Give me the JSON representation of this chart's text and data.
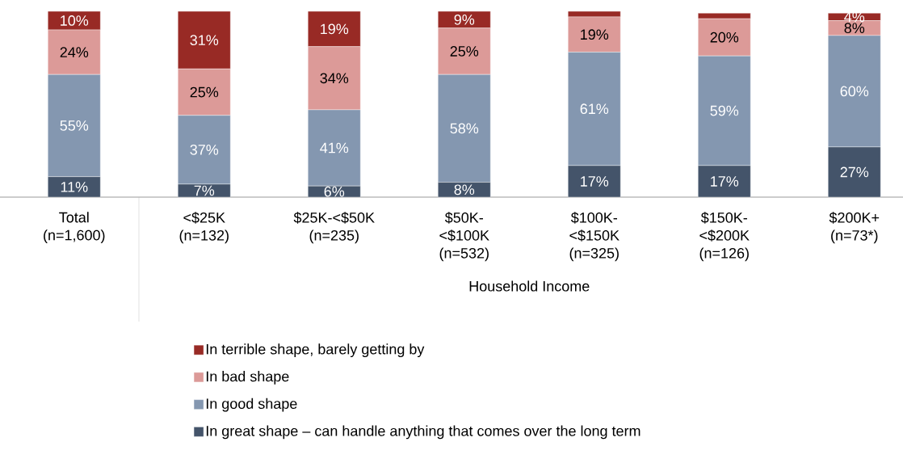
{
  "chart_data": {
    "type": "bar",
    "stacked": true,
    "legend": "bottom",
    "categories": [
      "Total (n=1,600)",
      "<$25K (n=132)",
      "$25K-<$50K (n=235)",
      "$50K-<$100K (n=532)",
      "$100K-<$150K (n=325)",
      "$150K-<$200K (n=126)",
      "$200K+ (n=73*)"
    ],
    "annotations": [
      "Household Income"
    ],
    "series": [
      {
        "name": "In great shape – can handle anything that comes over the long term",
        "color": "#44546a",
        "values": [
          11,
          7,
          6,
          8,
          17,
          17,
          27
        ],
        "value_labels": [
          "11%",
          "7%",
          "6%",
          "8%",
          "17%",
          "17%",
          "27%"
        ]
      },
      {
        "name": "In good shape",
        "color": "#8497b0",
        "values": [
          55,
          37,
          41,
          58,
          61,
          59,
          60
        ],
        "value_labels": [
          "55%",
          "37%",
          "41%",
          "58%",
          "61%",
          "59%",
          "60%"
        ]
      },
      {
        "name": "In bad shape",
        "color": "#dc9a98",
        "values": [
          24,
          25,
          34,
          25,
          19,
          20,
          8
        ],
        "value_labels": [
          "24%",
          "25%",
          "34%",
          "25%",
          "19%",
          "20%",
          "8%"
        ]
      },
      {
        "name": "In terrible shape, barely getting by",
        "color": "#982a25",
        "values": [
          10,
          31,
          19,
          9,
          3,
          3,
          4
        ],
        "value_labels": [
          "10%",
          "31%",
          "19%",
          "9%",
          null,
          null,
          "4%"
        ]
      }
    ]
  }
}
